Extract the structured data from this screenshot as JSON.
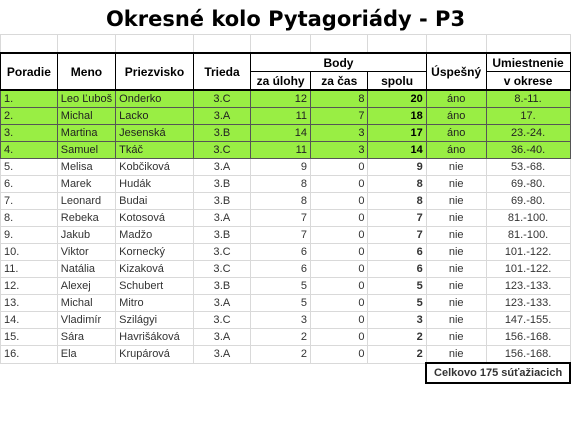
{
  "title": "Okresné kolo Pytagoriády - P3",
  "headers": {
    "poradie": "Poradie",
    "meno": "Meno",
    "priezvisko": "Priezvisko",
    "trieda": "Trieda",
    "body": "Body",
    "za_ulohy": "za úlohy",
    "za_cas": "za čas",
    "spolu": "spolu",
    "uspesny": "Úspešný",
    "umiestnenie1": "Umiestnenie",
    "umiestnenie2": "v okrese"
  },
  "rows": [
    {
      "poradie": "1.",
      "meno": "Leo Ľuboš",
      "priezvisko": "Onderko",
      "trieda": "3.C",
      "ulohy": "12",
      "cas": "8",
      "spolu": "20",
      "uspesny": "áno",
      "umiestnenie": "8.-11."
    },
    {
      "poradie": "2.",
      "meno": "Michal",
      "priezvisko": "Lacko",
      "trieda": "3.A",
      "ulohy": "11",
      "cas": "7",
      "spolu": "18",
      "uspesny": "áno",
      "umiestnenie": "17."
    },
    {
      "poradie": "3.",
      "meno": "Martina",
      "priezvisko": "Jesenská",
      "trieda": "3.B",
      "ulohy": "14",
      "cas": "3",
      "spolu": "17",
      "uspesny": "áno",
      "umiestnenie": "23.-24."
    },
    {
      "poradie": "4.",
      "meno": "Samuel",
      "priezvisko": "Tkáč",
      "trieda": "3.C",
      "ulohy": "11",
      "cas": "3",
      "spolu": "14",
      "uspesny": "áno",
      "umiestnenie": "36.-40."
    },
    {
      "poradie": "5.",
      "meno": "Melisa",
      "priezvisko": "Kobčiková",
      "trieda": "3.A",
      "ulohy": "9",
      "cas": "0",
      "spolu": "9",
      "uspesny": "nie",
      "umiestnenie": "53.-68."
    },
    {
      "poradie": "6.",
      "meno": "Marek",
      "priezvisko": "Hudák",
      "trieda": "3.B",
      "ulohy": "8",
      "cas": "0",
      "spolu": "8",
      "uspesny": "nie",
      "umiestnenie": "69.-80."
    },
    {
      "poradie": "7.",
      "meno": "Leonard",
      "priezvisko": "Budai",
      "trieda": "3.B",
      "ulohy": "8",
      "cas": "0",
      "spolu": "8",
      "uspesny": "nie",
      "umiestnenie": "69.-80."
    },
    {
      "poradie": "8.",
      "meno": "Rebeka",
      "priezvisko": "Kotosová",
      "trieda": "3.A",
      "ulohy": "7",
      "cas": "0",
      "spolu": "7",
      "uspesny": "nie",
      "umiestnenie": "81.-100."
    },
    {
      "poradie": "9.",
      "meno": "Jakub",
      "priezvisko": "Madžo",
      "trieda": "3.B",
      "ulohy": "7",
      "cas": "0",
      "spolu": "7",
      "uspesny": "nie",
      "umiestnenie": "81.-100."
    },
    {
      "poradie": "10.",
      "meno": "Viktor",
      "priezvisko": "Kornecký",
      "trieda": "3.C",
      "ulohy": "6",
      "cas": "0",
      "spolu": "6",
      "uspesny": "nie",
      "umiestnenie": "101.-122."
    },
    {
      "poradie": "11.",
      "meno": "Natália",
      "priezvisko": "Kizaková",
      "trieda": "3.C",
      "ulohy": "6",
      "cas": "0",
      "spolu": "6",
      "uspesny": "nie",
      "umiestnenie": "101.-122."
    },
    {
      "poradie": "12.",
      "meno": "Alexej",
      "priezvisko": "Schubert",
      "trieda": "3.B",
      "ulohy": "5",
      "cas": "0",
      "spolu": "5",
      "uspesny": "nie",
      "umiestnenie": "123.-133."
    },
    {
      "poradie": "13.",
      "meno": "Michal",
      "priezvisko": "Mitro",
      "trieda": "3.A",
      "ulohy": "5",
      "cas": "0",
      "spolu": "5",
      "uspesny": "nie",
      "umiestnenie": "123.-133."
    },
    {
      "poradie": "14.",
      "meno": "Vladimír",
      "priezvisko": "Szilágyi",
      "trieda": "3.C",
      "ulohy": "3",
      "cas": "0",
      "spolu": "3",
      "uspesny": "nie",
      "umiestnenie": "147.-155."
    },
    {
      "poradie": "15.",
      "meno": "Sára",
      "priezvisko": "Havrišáková",
      "trieda": "3.A",
      "ulohy": "2",
      "cas": "0",
      "spolu": "2",
      "uspesny": "nie",
      "umiestnenie": "156.-168."
    },
    {
      "poradie": "16.",
      "meno": "Ela",
      "priezvisko": "Krupárová",
      "trieda": "3.A",
      "ulohy": "2",
      "cas": "0",
      "spolu": "2",
      "uspesny": "nie",
      "umiestnenie": "156.-168."
    }
  ],
  "footer": {
    "total": "Celkovo 175 súťažiacich"
  },
  "colors": {
    "qualified": "#99ee44"
  }
}
